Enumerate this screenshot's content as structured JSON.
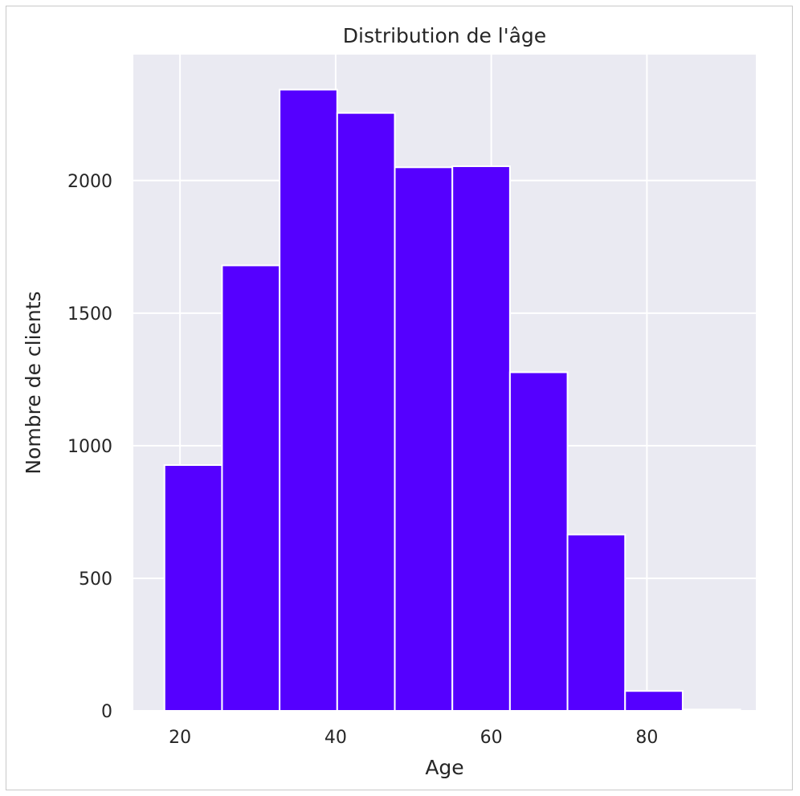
{
  "chart_data": {
    "type": "bar",
    "title": "Distribution de l'âge",
    "xlabel": "Age",
    "ylabel": "Nombre de clients",
    "xlim": [
      14,
      94
    ],
    "ylim": [
      0,
      2475
    ],
    "x_ticks": [
      20,
      40,
      60,
      80
    ],
    "y_ticks": [
      0,
      500,
      1000,
      1500,
      2000
    ],
    "bins": [
      {
        "x0": 18.0,
        "x1": 25.4,
        "value": 927
      },
      {
        "x0": 25.4,
        "x1": 32.8,
        "value": 1680
      },
      {
        "x0": 32.8,
        "x1": 40.2,
        "value": 2343
      },
      {
        "x0": 40.2,
        "x1": 47.6,
        "value": 2255
      },
      {
        "x0": 47.6,
        "x1": 55.0,
        "value": 2050
      },
      {
        "x0": 55.0,
        "x1": 62.4,
        "value": 2054
      },
      {
        "x0": 62.4,
        "x1": 69.8,
        "value": 1277
      },
      {
        "x0": 69.8,
        "x1": 77.2,
        "value": 665
      },
      {
        "x0": 77.2,
        "x1": 84.6,
        "value": 75
      },
      {
        "x0": 84.6,
        "x1": 92.0,
        "value": 5
      }
    ],
    "bar_color": "#5500ff",
    "background_color": "#eaeaf2",
    "grid": true,
    "legend": false
  }
}
